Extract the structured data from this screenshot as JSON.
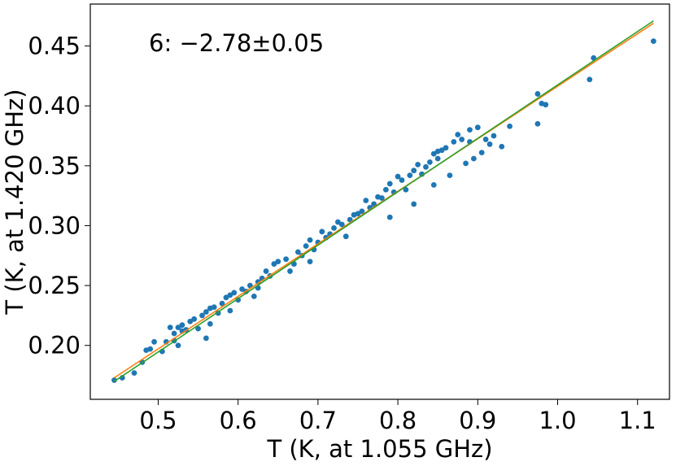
{
  "chart_data": {
    "type": "scatter",
    "title": "",
    "xlabel": "T (K, at 1.055 GHz)",
    "ylabel": "T (K, at 1.420 GHz)",
    "annotation": "6: −2.78±0.05",
    "xlim": [
      0.415,
      1.14
    ],
    "ylim": [
      0.155,
      0.485
    ],
    "xticks": [
      0.5,
      0.6,
      0.7,
      0.8,
      0.9,
      1.0,
      1.1
    ],
    "xtick_labels": [
      "0.5",
      "0.6",
      "0.7",
      "0.8",
      "0.9",
      "1.0",
      "1.1"
    ],
    "yticks": [
      0.2,
      0.25,
      0.3,
      0.35,
      0.4,
      0.45
    ],
    "ytick_labels": [
      "0.20",
      "0.25",
      "0.30",
      "0.35",
      "0.40",
      "0.45"
    ],
    "grid": false,
    "colors": {
      "points": "#1f77b4",
      "fit_orange": "#ff7f0e",
      "fit_green": "#2ca02c"
    },
    "fit_lines": [
      {
        "color": "#ff7f0e",
        "x": [
          0.445,
          1.12
        ],
        "y": [
          0.173,
          0.469
        ]
      },
      {
        "color": "#2ca02c",
        "x": [
          0.445,
          1.12
        ],
        "y": [
          0.17,
          0.471
        ]
      }
    ],
    "points": {
      "x": [
        0.445,
        0.455,
        0.47,
        0.48,
        0.485,
        0.49,
        0.495,
        0.505,
        0.51,
        0.515,
        0.52,
        0.52,
        0.525,
        0.525,
        0.53,
        0.53,
        0.535,
        0.54,
        0.545,
        0.55,
        0.555,
        0.56,
        0.56,
        0.565,
        0.565,
        0.57,
        0.575,
        0.58,
        0.585,
        0.59,
        0.59,
        0.595,
        0.6,
        0.605,
        0.61,
        0.615,
        0.62,
        0.625,
        0.625,
        0.63,
        0.635,
        0.64,
        0.645,
        0.65,
        0.66,
        0.665,
        0.67,
        0.675,
        0.68,
        0.685,
        0.69,
        0.69,
        0.695,
        0.7,
        0.705,
        0.71,
        0.715,
        0.72,
        0.725,
        0.73,
        0.735,
        0.74,
        0.745,
        0.75,
        0.755,
        0.76,
        0.765,
        0.77,
        0.775,
        0.78,
        0.785,
        0.79,
        0.79,
        0.795,
        0.8,
        0.805,
        0.81,
        0.815,
        0.82,
        0.82,
        0.825,
        0.83,
        0.835,
        0.84,
        0.845,
        0.845,
        0.85,
        0.85,
        0.855,
        0.86,
        0.865,
        0.87,
        0.875,
        0.88,
        0.885,
        0.89,
        0.89,
        0.895,
        0.9,
        0.905,
        0.91,
        0.915,
        0.92,
        0.93,
        0.94,
        0.975,
        0.975,
        0.98,
        0.985,
        1.04,
        1.045,
        1.12
      ],
      "y": [
        0.171,
        0.173,
        0.177,
        0.186,
        0.196,
        0.197,
        0.203,
        0.195,
        0.203,
        0.215,
        0.204,
        0.21,
        0.2,
        0.215,
        0.212,
        0.217,
        0.213,
        0.22,
        0.222,
        0.214,
        0.225,
        0.206,
        0.228,
        0.218,
        0.231,
        0.232,
        0.227,
        0.235,
        0.24,
        0.229,
        0.242,
        0.244,
        0.238,
        0.247,
        0.245,
        0.25,
        0.241,
        0.253,
        0.248,
        0.256,
        0.262,
        0.258,
        0.268,
        0.27,
        0.272,
        0.262,
        0.268,
        0.278,
        0.275,
        0.283,
        0.27,
        0.288,
        0.28,
        0.286,
        0.295,
        0.29,
        0.293,
        0.298,
        0.303,
        0.301,
        0.291,
        0.305,
        0.309,
        0.31,
        0.312,
        0.321,
        0.315,
        0.318,
        0.324,
        0.323,
        0.33,
        0.307,
        0.335,
        0.328,
        0.341,
        0.338,
        0.33,
        0.342,
        0.318,
        0.346,
        0.351,
        0.343,
        0.349,
        0.353,
        0.334,
        0.36,
        0.356,
        0.362,
        0.363,
        0.365,
        0.342,
        0.37,
        0.376,
        0.372,
        0.352,
        0.38,
        0.37,
        0.356,
        0.382,
        0.361,
        0.372,
        0.368,
        0.375,
        0.366,
        0.383,
        0.385,
        0.41,
        0.402,
        0.401,
        0.422,
        0.44,
        0.454
      ]
    }
  }
}
